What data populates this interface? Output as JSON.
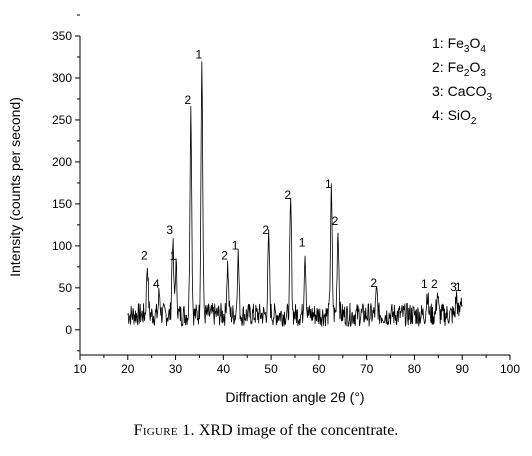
{
  "chart_data": {
    "type": "line",
    "xlabel": "Diffraction angle 2θ (°)",
    "ylabel": "Intensity (counts per second)",
    "xlim": [
      10,
      100
    ],
    "ylim": [
      -30,
      350
    ],
    "xticks": [
      10,
      20,
      30,
      40,
      50,
      60,
      70,
      80,
      90,
      100
    ],
    "yticks": [
      0,
      50,
      100,
      150,
      200,
      250,
      300,
      350
    ],
    "grid": false,
    "legend_position": "top-right",
    "legend": [
      {
        "number": "1",
        "formula": [
          [
            "Fe",
            ""
          ],
          [
            "3",
            "sub"
          ],
          [
            "O",
            ""
          ],
          [
            "4",
            "sub"
          ]
        ]
      },
      {
        "number": "2",
        "formula": [
          [
            "Fe",
            ""
          ],
          [
            "2",
            "sub"
          ],
          [
            "O",
            ""
          ],
          [
            "3",
            "sub"
          ]
        ]
      },
      {
        "number": "3",
        "formula": [
          [
            "CaCO",
            ""
          ],
          [
            "3",
            "sub"
          ]
        ]
      },
      {
        "number": "4",
        "formula": [
          [
            "SiO",
            ""
          ],
          [
            "2",
            "sub"
          ]
        ]
      }
    ],
    "x_start": 20,
    "x_end": 90,
    "baseline": 18,
    "noise": 14,
    "peaks": [
      {
        "x": 24.1,
        "y": 78,
        "label": "2"
      },
      {
        "x": 26.6,
        "y": 44,
        "label": "4"
      },
      {
        "x": 29.4,
        "y": 108,
        "label": "3"
      },
      {
        "x": 30.1,
        "y": 77,
        "label": "1"
      },
      {
        "x": 33.2,
        "y": 263,
        "label": "2"
      },
      {
        "x": 35.5,
        "y": 317,
        "label": "1"
      },
      {
        "x": 40.9,
        "y": 78,
        "label": "2"
      },
      {
        "x": 43.1,
        "y": 90,
        "label": "1"
      },
      {
        "x": 49.5,
        "y": 108,
        "label": "2"
      },
      {
        "x": 54.1,
        "y": 150,
        "label": "2"
      },
      {
        "x": 57.1,
        "y": 93,
        "label": "1"
      },
      {
        "x": 62.6,
        "y": 163,
        "label": "1"
      },
      {
        "x": 64.0,
        "y": 119,
        "label": "2"
      },
      {
        "x": 72.1,
        "y": 45,
        "label": "2"
      },
      {
        "x": 82.7,
        "y": 44,
        "label": "1"
      },
      {
        "x": 84.8,
        "y": 44,
        "label": "2"
      },
      {
        "x": 88.8,
        "y": 40,
        "label": "3"
      },
      {
        "x": 89.8,
        "y": 40,
        "label": "1"
      }
    ]
  },
  "caption": {
    "figure_label": "Figure 1.",
    "text": "XRD image of the concentrate."
  }
}
